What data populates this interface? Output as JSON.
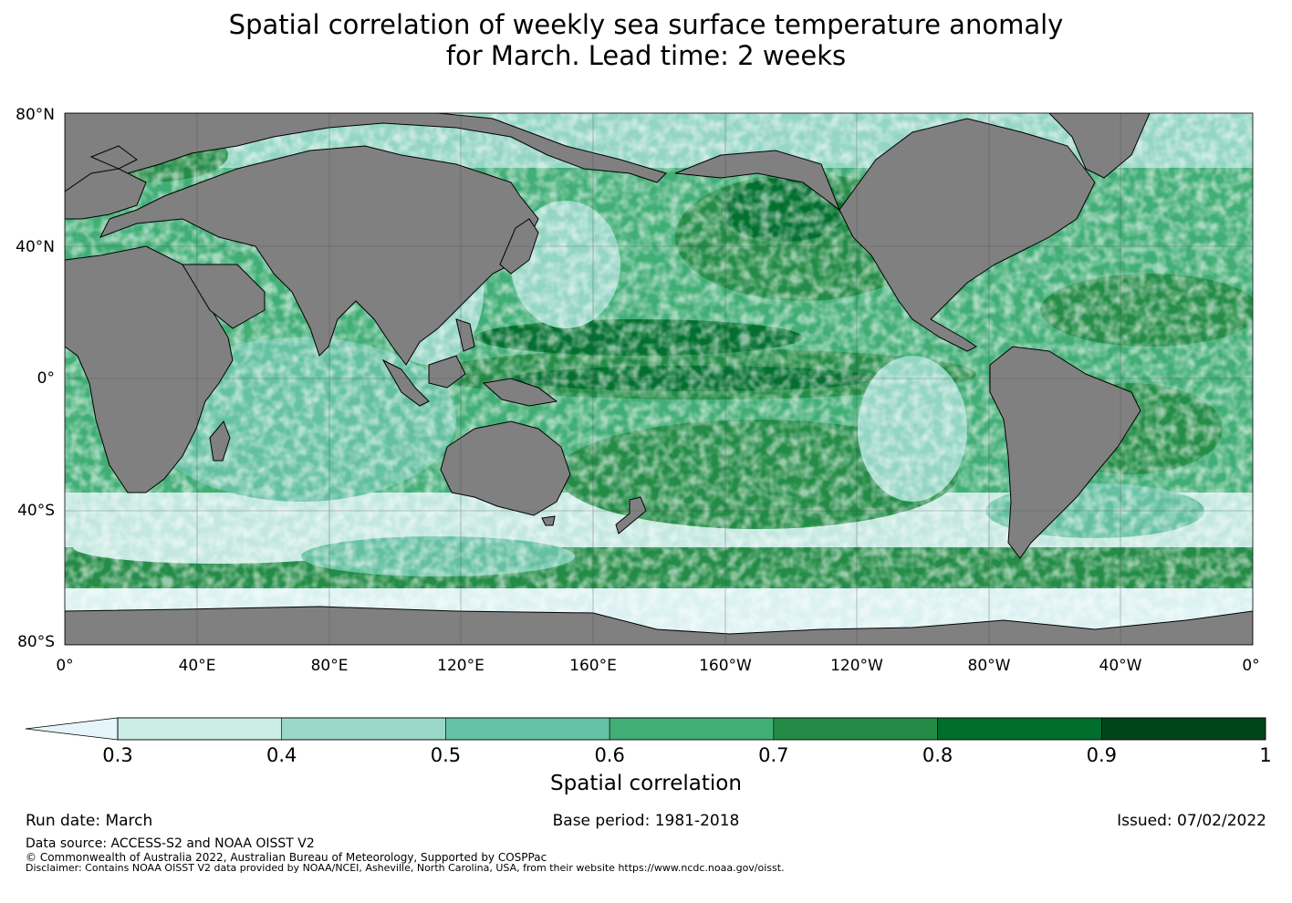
{
  "title": {
    "line1": "Spatial correlation of weekly sea surface temperature anomaly",
    "line2": "for March. Lead time: 2 weeks"
  },
  "map": {
    "lat_labels": [
      "80°N",
      "40°N",
      "0°",
      "40°S",
      "80°S"
    ],
    "lon_labels": [
      "0°",
      "40°E",
      "80°E",
      "120°E",
      "160°E",
      "160°W",
      "120°W",
      "80°W",
      "40°W",
      "0°"
    ],
    "land_color": "#808080",
    "ice_color": "#e6f5f9",
    "grid": true
  },
  "colorbar": {
    "label": "Spatial correlation",
    "ticks": [
      "0.3",
      "0.4",
      "0.5",
      "0.6",
      "0.7",
      "0.8",
      "0.9",
      "1"
    ],
    "extend": "min",
    "under_color": "#e5f5f9",
    "bin_colors": [
      "#ccece6",
      "#99d8c9",
      "#66c2a4",
      "#41ae76",
      "#238b45",
      "#006d2c",
      "#00441b"
    ]
  },
  "footer": {
    "run_date": "Run date: March",
    "base_period": "Base period: 1981-2018",
    "issued": "Issued: 07/02/2022",
    "data_source": "Data source: ACCESS-S2 and NOAA OISST V2",
    "copyright": "© Commonwealth of Australia 2022, Australian Bureau of Meteorology, Supported by COSPPac",
    "disclaimer": "Disclaimer: Contains NOAA OISST V2 data provided by NOAA/NCEI, Asheville, North Carolina, USA, from their website https://www.ncdc.noaa.gov/oisst."
  }
}
